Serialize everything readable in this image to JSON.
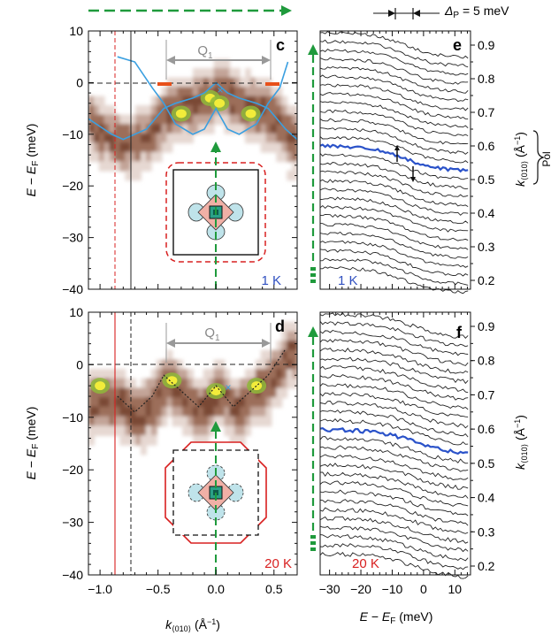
{
  "figure": {
    "panel_c": {
      "letter": "c",
      "temperature": "1 K",
      "gap_label": "Q1",
      "y_axis_label": "E − E_F (meV)"
    },
    "panel_d": {
      "letter": "d",
      "temperature": "20 K",
      "gap_label": "Q1",
      "y_axis_label": "E − E_F (meV)"
    },
    "panel_e": {
      "letter": "e",
      "temperature": "1 K",
      "delta_label": "Δ_P = 5 meV",
      "right_axis_label": "k⟨010⟩ (Å⁻¹)"
    },
    "panel_f": {
      "letter": "f",
      "temperature": "20 K",
      "right_axis_label": "k⟨010⟩ (Å⁻¹)"
    },
    "x_axis_left": "k⟨010⟩ (Å⁻¹)",
    "x_axis_right": "E − E_F (meV)",
    "truncated_side_label": "Pol"
  },
  "chart_data": [
    {
      "type": "heatmap",
      "panel": "c",
      "title": "",
      "xlabel": "k<010> (Å⁻¹)",
      "ylabel": "E − E_F (meV)",
      "xlim": [
        -1.1,
        0.7
      ],
      "ylim": [
        -40,
        10
      ],
      "x_ticks": [
        "-1.0",
        "-0.5",
        "0.0",
        "0.5"
      ],
      "y_ticks": [
        "10",
        "0",
        "-10",
        "-20",
        "-30",
        "-40"
      ],
      "annotations": [
        "Q1",
        "1 K"
      ],
      "bright_spots": [
        {
          "k": -0.05,
          "E": -3
        },
        {
          "k": 0.03,
          "E": -4
        },
        {
          "k": -0.3,
          "E": -6
        },
        {
          "k": 0.3,
          "E": -6
        }
      ],
      "band_curve": {
        "k": [
          -1.1,
          -0.9,
          -0.8,
          -0.6,
          -0.45,
          -0.35,
          -0.2,
          -0.1,
          0,
          0.1,
          0.2,
          0.35,
          0.45,
          0.6,
          0.7
        ],
        "E": [
          -7,
          -10,
          -11,
          -9,
          -5,
          -4,
          -3,
          -2,
          0,
          -2,
          -3,
          -4,
          -5,
          -9,
          -11
        ]
      },
      "dispersion_curve": {
        "k": [
          -0.85,
          -0.7,
          -0.55,
          -0.45,
          -0.35,
          -0.2,
          -0.1,
          0,
          0.1,
          0.2,
          0.35,
          0.45,
          0.55,
          0.62
        ],
        "E": [
          5,
          4,
          -1,
          -4,
          -8,
          -10,
          -9,
          -5,
          -9,
          -10,
          -8,
          -4,
          -1,
          4
        ]
      },
      "vertical_lines": [
        {
          "k": -0.9,
          "style": "dashed-red"
        },
        {
          "k": -0.75,
          "style": "solid-black"
        }
      ]
    },
    {
      "type": "heatmap",
      "panel": "d",
      "title": "",
      "xlabel": "k<010> (Å⁻¹)",
      "ylabel": "E − E_F (meV)",
      "xlim": [
        -1.1,
        0.7
      ],
      "ylim": [
        -40,
        10
      ],
      "x_ticks": [
        "-1.0",
        "-0.5",
        "0.0",
        "0.5"
      ],
      "y_ticks": [
        "10",
        "0",
        "-10",
        "-20",
        "-30",
        "-40"
      ],
      "annotations": [
        "Q1",
        "20 K"
      ],
      "bright_spots": [
        {
          "k": -1.0,
          "E": -4
        },
        {
          "k": -0.38,
          "E": -3
        },
        {
          "k": 0.0,
          "E": -5
        },
        {
          "k": 0.35,
          "E": -4
        }
      ],
      "dotted_curve": {
        "k": [
          -0.85,
          -0.7,
          -0.55,
          -0.45,
          -0.3,
          -0.15,
          0,
          0.15,
          0.3,
          0.45,
          0.6
        ],
        "E": [
          -6,
          -9,
          -6,
          -2,
          -5,
          -8,
          -4,
          -8,
          -5,
          -2,
          3
        ]
      },
      "vertical_lines": [
        {
          "k": -0.9,
          "style": "solid-red"
        },
        {
          "k": -0.75,
          "style": "dashed-black"
        }
      ]
    },
    {
      "type": "line",
      "panel": "e",
      "title": "",
      "xlabel": "E − E_F (meV)",
      "ylabel": "k<010> (Å⁻¹)",
      "xlim": [
        -33,
        15
      ],
      "right_axis_range": [
        0.2,
        0.9
      ],
      "right_ticks": [
        "0.9",
        "0.8",
        "0.7",
        "0.6",
        "0.5",
        "0.4",
        "0.3",
        "0.2"
      ],
      "series_count": 28,
      "edge_midpoint_meV": -6,
      "edge_width_meV": 5,
      "highlighted_k": 0.57,
      "highlight_color": "#2a52c9",
      "gap_delta_meV": 5,
      "annotations": [
        "1 K",
        "Δ_P = 5 meV"
      ]
    },
    {
      "type": "line",
      "panel": "f",
      "title": "",
      "xlabel": "E − E_F (meV)",
      "ylabel": "k<010> (Å⁻¹)",
      "xlim": [
        -33,
        15
      ],
      "x_ticks": [
        "−30",
        "−20",
        "−10",
        "0",
        "10"
      ],
      "right_axis_range": [
        0.2,
        0.9
      ],
      "right_ticks": [
        "0.9",
        "0.8",
        "0.7",
        "0.6",
        "0.5",
        "0.4",
        "0.3",
        "0.2"
      ],
      "series_count": 28,
      "edge_midpoint_meV": -3,
      "edge_width_meV": 6,
      "highlighted_k": 0.57,
      "highlight_color": "#2a52c9",
      "annotations": [
        "20 K"
      ]
    }
  ],
  "colors": {
    "green_arrow": "#1f9a3c",
    "red": "#d82020",
    "blue_text": "#3050c0",
    "orange": "#e8501a",
    "cyan_curve": "#3a9fe0"
  }
}
